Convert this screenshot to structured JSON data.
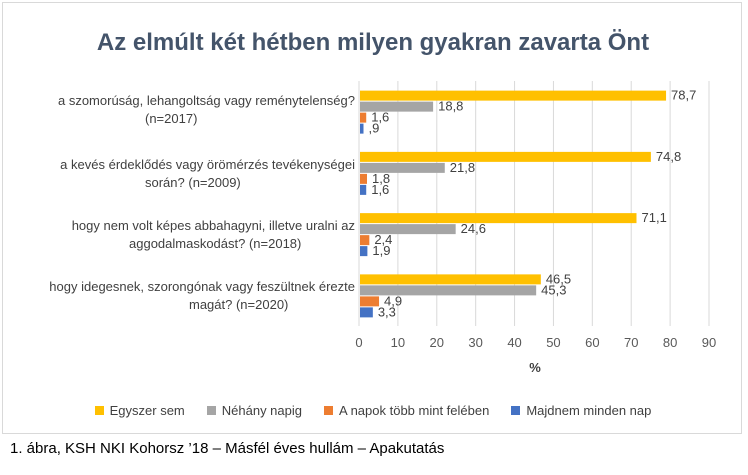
{
  "chart_data": {
    "type": "bar",
    "orientation": "horizontal",
    "title": "Az elmúlt két hétben milyen gyakran zavarta Önt",
    "xlabel": "%",
    "xlim": [
      0,
      90
    ],
    "xticks": [
      "0",
      "10",
      "20",
      "30",
      "40",
      "50",
      "60",
      "70",
      "80",
      "90"
    ],
    "grid": "vertical",
    "legend_position": "bottom",
    "categories": [
      "a szomorúság, lehangoltság vagy reménytelenség? (n=2017)",
      "a kevés érdeklődés vagy örömérzés tevékenységei során? (n=2009)",
      "hogy nem volt képes abbahagyni, illetve uralni az aggodalmaskodást? (n=2018)",
      "hogy idegesnek, szorongónak vagy feszültnek érezte magát? (n=2020)"
    ],
    "series": [
      {
        "name": "Egyszer sem",
        "color": "#ffc000",
        "values": [
          78.7,
          74.8,
          71.1,
          46.5
        ],
        "labels": [
          "78,7",
          "74,8",
          "71,1",
          "46,5"
        ]
      },
      {
        "name": "Néhány napig",
        "color": "#a5a5a5",
        "values": [
          18.8,
          21.8,
          24.6,
          45.3
        ],
        "labels": [
          "18,8",
          "21,8",
          "24,6",
          "45,3"
        ]
      },
      {
        "name": "A napok több mint felében",
        "color": "#ed7d31",
        "values": [
          1.6,
          1.8,
          2.4,
          4.9
        ],
        "labels": [
          "1,6",
          "1,8",
          "2,4",
          "4,9"
        ]
      },
      {
        "name": "Majdnem minden nap",
        "color": "#4472c4",
        "values": [
          0.9,
          1.6,
          1.9,
          3.3
        ],
        "labels": [
          ",9",
          "1,6",
          "1,9",
          "3,3"
        ]
      }
    ]
  },
  "category_labels": [
    {
      "line1": "a szomorúság, lehangoltság vagy reménytelenség?",
      "line2": "(n=2017)"
    },
    {
      "line1": "a kevés érdeklődés vagy örömérzés tevékenységei",
      "line2": "során? (n=2009)"
    },
    {
      "line1": "hogy nem volt képes abbahagyni, illetve uralni az",
      "line2": "aggodalmaskodást? (n=2018)"
    },
    {
      "line1": "hogy idegesnek, szorongónak vagy feszültnek érezte",
      "line2": "magát? (n=2020)"
    }
  ],
  "caption": "1. ábra, KSH NKI Kohorsz ’18 – Másfél éves hullám – Apakutatás"
}
